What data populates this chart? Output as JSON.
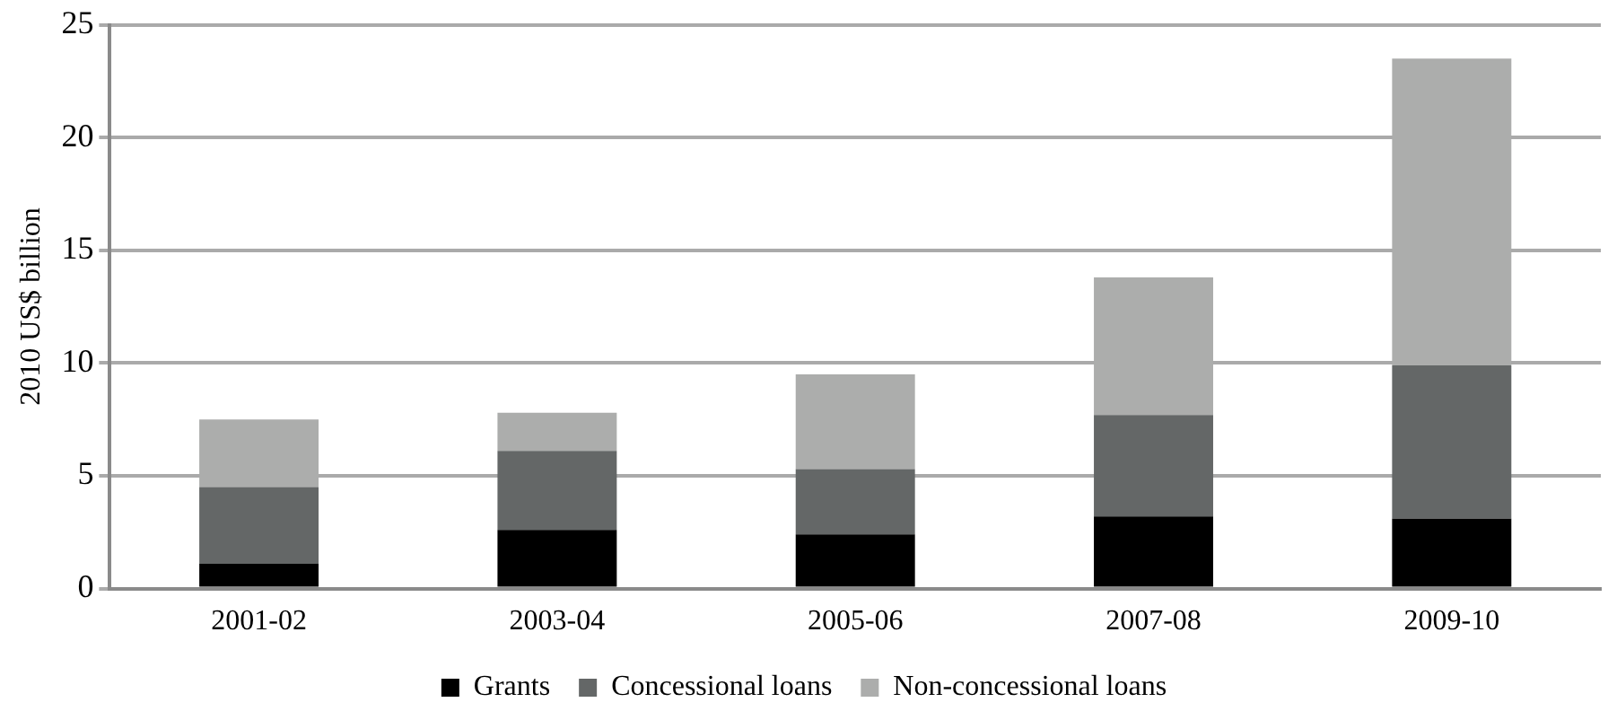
{
  "chart_data": {
    "type": "bar",
    "stacked": true,
    "ylabel": "2010 US$ billion",
    "categories": [
      "2001-02",
      "2003-04",
      "2005-06",
      "2007-08",
      "2009-10"
    ],
    "series": [
      {
        "name": "Grants",
        "color": "#000000",
        "values": [
          1.1,
          2.6,
          2.4,
          3.2,
          3.1
        ]
      },
      {
        "name": "Concessional loans",
        "color": "#646767",
        "values": [
          3.4,
          3.5,
          2.9,
          4.5,
          6.8
        ]
      },
      {
        "name": "Non-concessional loans",
        "color": "#acadac",
        "values": [
          3.0,
          1.7,
          4.2,
          6.1,
          13.6
        ]
      }
    ],
    "ylim": [
      0,
      25
    ],
    "yticks": [
      0,
      5,
      10,
      15,
      20,
      25
    ],
    "grid": "y",
    "legend": "bottom"
  }
}
